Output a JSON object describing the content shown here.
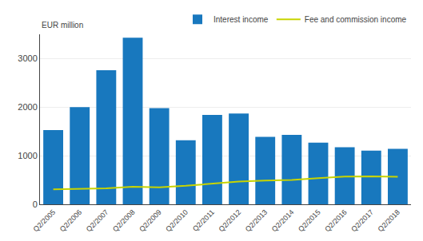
{
  "chart_data": {
    "type": "bar",
    "ylabel": "EUR million",
    "categories": [
      "Q2/2005",
      "Q2/2006",
      "Q2/2007",
      "Q2/2008",
      "Q2/2009",
      "Q2/2010",
      "Q2/2011",
      "Q2/2012",
      "Q2/2013",
      "Q2/2014",
      "Q2/2015",
      "Q2/2016",
      "Q2/2017",
      "Q2/2018"
    ],
    "series": [
      {
        "name": "Interest income",
        "type": "bar",
        "color": "#1878be",
        "values": [
          1530,
          2000,
          2760,
          3430,
          1980,
          1320,
          1840,
          1870,
          1390,
          1430,
          1270,
          1175,
          1105,
          1140
        ]
      },
      {
        "name": "Fee and commission income",
        "type": "line",
        "color": "#c8d400",
        "values": [
          310,
          320,
          330,
          360,
          350,
          380,
          430,
          470,
          490,
          500,
          540,
          570,
          575,
          565
        ]
      }
    ],
    "ylim": [
      0,
      3500
    ],
    "yticks": [
      0,
      1000,
      2000,
      3000
    ],
    "grid": true,
    "legend": "upper right"
  }
}
